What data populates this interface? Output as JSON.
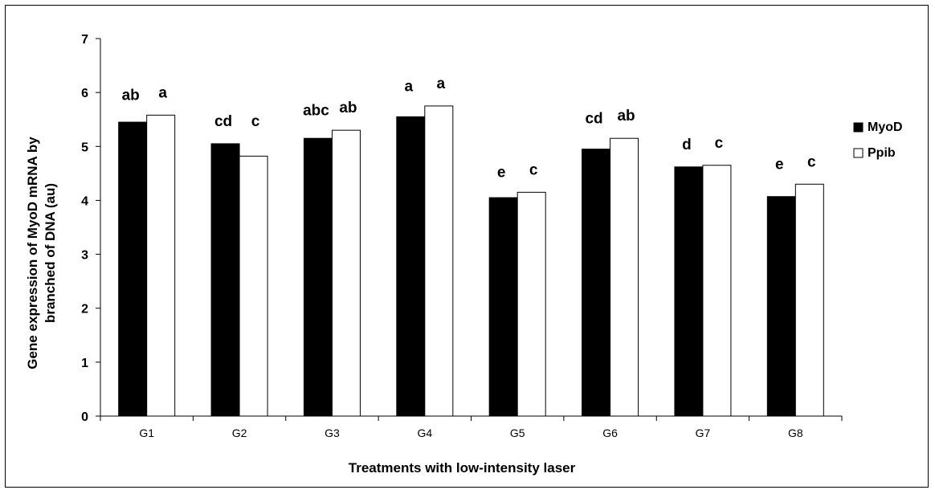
{
  "chart_data": {
    "type": "bar",
    "xlabel": "Treatments with low-intensity laser",
    "ylabel_lines": [
      "Gene expression of MyoD mRNA by",
      "branched of DNA (au)"
    ],
    "ylim": [
      0,
      7
    ],
    "yticks": [
      "0",
      "1",
      "2",
      "3",
      "4",
      "5",
      "6",
      "7"
    ],
    "categories": [
      "G1",
      "G2",
      "G3",
      "G4",
      "G5",
      "G6",
      "G7",
      "G8"
    ],
    "series": [
      {
        "name": "MyoD",
        "color": "#000000",
        "values": [
          5.45,
          5.05,
          5.15,
          5.55,
          4.05,
          4.95,
          4.62,
          4.07
        ],
        "labels": [
          "ab",
          "cd",
          "abc",
          "a",
          "e",
          "cd",
          "d",
          "e"
        ]
      },
      {
        "name": "Ppib",
        "color": "#ffffff",
        "values": [
          5.58,
          4.82,
          5.3,
          5.75,
          4.15,
          5.15,
          4.65,
          4.3
        ],
        "labels": [
          "a",
          "c",
          "ab",
          "a",
          "c",
          "ab",
          "c",
          "c"
        ]
      }
    ],
    "legend_position": "top-right",
    "grid": false
  }
}
